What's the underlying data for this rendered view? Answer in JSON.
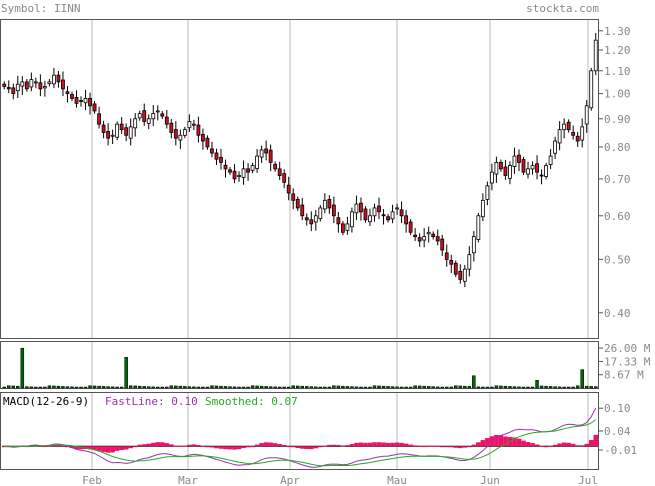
{
  "header": {
    "symbol_label": "Symbol: IINN",
    "site_label": "stockta.com"
  },
  "colors": {
    "up_candle": "#ffffff",
    "down_candle": "#cc1122",
    "volume_bar": "#006600",
    "macd_hist": "#ee1166",
    "fastline": "#9933aa",
    "smoothed": "#22aa22",
    "grid": "#bbbbbb",
    "label_gray": "#888888"
  },
  "chart_data": [
    {
      "type": "candlestick",
      "scale": "log",
      "ylim": [
        0.36,
        1.36
      ],
      "y_ticks": [
        "1.30",
        "1.20",
        "1.10",
        "1.00",
        "0.90",
        "0.80",
        "0.70",
        "0.60",
        "0.50",
        "0.40"
      ],
      "x_ticks": [
        "Feb",
        "Mar",
        "Apr",
        "Mau",
        "Jun",
        "Jul"
      ],
      "close": [
        1.03,
        1.02,
        1.0,
        1.04,
        1.05,
        1.02,
        1.06,
        1.05,
        1.02,
        1.03,
        1.05,
        1.08,
        1.05,
        1.02,
        1.0,
        0.98,
        0.96,
        0.97,
        0.98,
        0.95,
        0.93,
        0.88,
        0.85,
        0.83,
        0.84,
        0.88,
        0.86,
        0.84,
        0.87,
        0.9,
        0.92,
        0.89,
        0.9,
        0.92,
        0.93,
        0.91,
        0.88,
        0.85,
        0.83,
        0.84,
        0.86,
        0.89,
        0.88,
        0.84,
        0.82,
        0.8,
        0.78,
        0.76,
        0.75,
        0.73,
        0.72,
        0.7,
        0.71,
        0.73,
        0.72,
        0.74,
        0.77,
        0.79,
        0.78,
        0.75,
        0.73,
        0.71,
        0.69,
        0.66,
        0.64,
        0.62,
        0.6,
        0.59,
        0.58,
        0.6,
        0.62,
        0.64,
        0.62,
        0.6,
        0.58,
        0.56,
        0.58,
        0.61,
        0.63,
        0.61,
        0.59,
        0.6,
        0.62,
        0.61,
        0.6,
        0.59,
        0.61,
        0.62,
        0.6,
        0.58,
        0.56,
        0.55,
        0.54,
        0.55,
        0.56,
        0.55,
        0.54,
        0.52,
        0.5,
        0.49,
        0.47,
        0.46,
        0.48,
        0.51,
        0.55,
        0.6,
        0.64,
        0.68,
        0.72,
        0.75,
        0.73,
        0.71,
        0.74,
        0.77,
        0.75,
        0.72,
        0.73,
        0.74,
        0.72,
        0.71,
        0.74,
        0.77,
        0.82,
        0.86,
        0.88,
        0.86,
        0.84,
        0.82,
        0.87,
        0.95,
        1.1,
        1.25
      ],
      "volume_ticks": [
        "26.00 M",
        "17.33 M",
        "8.67 M"
      ],
      "volume_max_millions": 30
    },
    {
      "type": "macd",
      "title": "MACD(12-26-9)",
      "fastline_label": "FastLine: 0.10",
      "smoothed_label": "Smoothed: 0.07",
      "fastline": 0.1,
      "smoothed": 0.07,
      "y_ticks": [
        "0.10",
        "0.04",
        "-0.01"
      ],
      "ylim": [
        -0.06,
        0.14
      ]
    }
  ]
}
